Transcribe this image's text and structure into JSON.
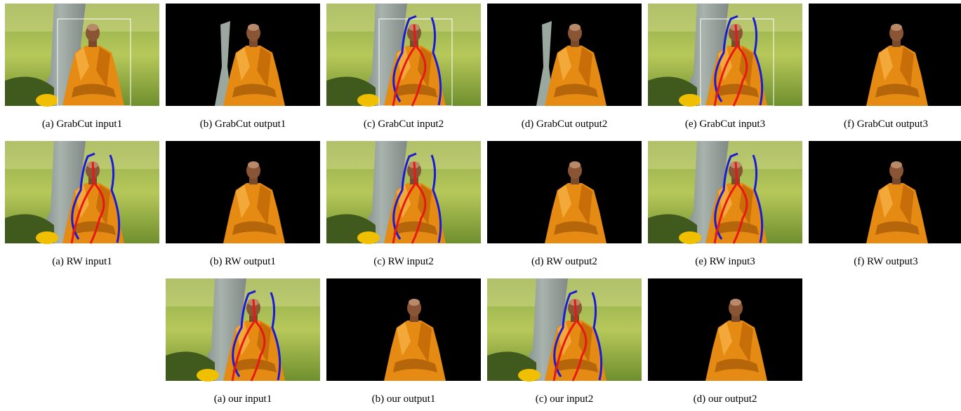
{
  "figure": {
    "rows": [
      [
        "(a) GrabCut input1",
        "(b) GrabCut output1",
        "(c) GrabCut input2",
        "(d) GrabCut output2",
        "(e) GrabCut input3",
        "(f) GrabCut output3"
      ],
      [
        "(a) RW input1",
        "(b) RW output1",
        "(c) RW input2",
        "(d) RW output2",
        "(e) RW input3",
        "(f) RW output3"
      ],
      [
        "(a) our input1",
        "(b) our output1",
        "(c) our input2",
        "(d) our output2"
      ]
    ]
  }
}
